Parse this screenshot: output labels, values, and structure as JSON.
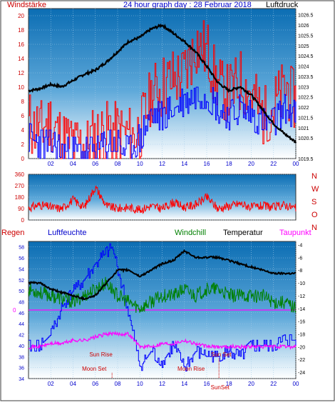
{
  "colors": {
    "frame": "#3b3b3b",
    "plot_top": "#0b73b8",
    "plot_bottom": "#ffffff",
    "grid": "#9fc9e6",
    "wind_gust": "#ff0000",
    "wind_avg": "#0000ff",
    "pressure": "#000000",
    "wind_dir": "#ff0000",
    "humidity": "#0000ff",
    "windchill": "#008000",
    "temperature": "#000000",
    "dewpoint": "#ff00ff",
    "zero_line": "#ff00ff",
    "sun_label": "#cc0000",
    "label_red": "#cc0000",
    "label_blue": "#0000cc",
    "label_green": "#008000",
    "label_magenta": "#ff00ff"
  },
  "header": {
    "title": "24 hour graph day : 28 Februar 2018",
    "left_label": "Windstärke",
    "right_label": "Luftdruck"
  },
  "chart_data": [
    {
      "type": "line",
      "id": "wind_pressure",
      "x_ticks": [
        "02",
        "04",
        "06",
        "08",
        "10",
        "12",
        "14",
        "16",
        "18",
        "20",
        "22",
        "00"
      ],
      "left_axis": {
        "name": "Windstärke",
        "ticks": [
          0,
          2,
          4,
          6,
          8,
          10,
          12,
          14,
          16,
          18,
          20
        ],
        "ylim": [
          0,
          21
        ]
      },
      "right_axis": {
        "name": "Luftdruck",
        "ticks": [
          "1019.5",
          "1020.5",
          "1021",
          "1021.5",
          "1022",
          "1022.5",
          "1023",
          "1023.5",
          "1024",
          "1024.5",
          "1025",
          "1025.5",
          "1026",
          "1026.5"
        ],
        "ylim": [
          1019.5,
          1026.8
        ]
      },
      "series": [
        {
          "name": "wind_gust",
          "hours": [
            0,
            1,
            2,
            3,
            4,
            5,
            6,
            7,
            8,
            9,
            10,
            11,
            12,
            13,
            14,
            15,
            16,
            17,
            18,
            19,
            20,
            21,
            22,
            23,
            24
          ],
          "values": [
            5,
            4,
            5,
            3,
            2,
            2,
            3,
            4,
            4,
            3,
            4,
            9,
            10,
            11,
            12,
            16,
            15,
            10,
            9,
            11,
            9,
            6,
            7,
            10,
            8
          ]
        },
        {
          "name": "wind_avg",
          "hours": [
            0,
            1,
            2,
            3,
            4,
            5,
            6,
            7,
            8,
            9,
            10,
            11,
            12,
            13,
            14,
            15,
            16,
            17,
            18,
            19,
            20,
            21,
            22,
            23,
            24
          ],
          "values": [
            3,
            2,
            2,
            1,
            1,
            1,
            1,
            2,
            2,
            1,
            3,
            6,
            6,
            7,
            8,
            9,
            9,
            7,
            6,
            7,
            6,
            5,
            5,
            7,
            6
          ]
        },
        {
          "name": "Luftdruck",
          "hours": [
            0,
            1,
            2,
            3,
            4,
            5,
            6,
            7,
            8,
            9,
            10,
            11,
            12,
            13,
            14,
            15,
            16,
            17,
            18,
            19,
            20,
            21,
            22,
            23,
            24
          ],
          "values": [
            1022.8,
            1022.9,
            1023.1,
            1023.0,
            1023.3,
            1023.6,
            1023.8,
            1024.2,
            1024.7,
            1025.2,
            1025.4,
            1025.8,
            1026.0,
            1025.6,
            1025.2,
            1024.7,
            1024.0,
            1023.2,
            1022.8,
            1023.0,
            1022.6,
            1021.9,
            1021.2,
            1020.7,
            1020.3
          ]
        }
      ]
    },
    {
      "type": "line",
      "id": "wind_direction",
      "left_axis": {
        "ticks": [
          0,
          90,
          180,
          270,
          360
        ],
        "ylim": [
          0,
          360
        ]
      },
      "right_labels": [
        "N",
        "W",
        "S",
        "O",
        "N"
      ],
      "series": [
        {
          "name": "wind_dir",
          "hours": [
            0,
            1,
            2,
            3,
            4,
            5,
            6,
            7,
            8,
            9,
            10,
            11,
            12,
            13,
            14,
            15,
            16,
            17,
            18,
            19,
            20,
            21,
            22,
            23,
            24
          ],
          "values": [
            95,
            120,
            100,
            90,
            160,
            100,
            260,
            110,
            90,
            100,
            80,
            110,
            90,
            140,
            100,
            120,
            180,
            90,
            110,
            130,
            100,
            110,
            100,
            120,
            90
          ]
        }
      ]
    },
    {
      "type": "line",
      "id": "temp_humidity",
      "labels": {
        "regen": "Regen",
        "humidity": "Luftfeuchte",
        "windchill": "Windchill",
        "temperature": "Temperatur",
        "dewpoint": "Taupunkt"
      },
      "zero_label": "0",
      "x_ticks": [
        "02",
        "04",
        "06",
        "08",
        "10",
        "12",
        "14",
        "16",
        "18",
        "20",
        "22",
        "00"
      ],
      "left_axis": {
        "name": "Luftfeuchte",
        "ticks": [
          34,
          36,
          38,
          40,
          42,
          44,
          46,
          48,
          50,
          52,
          54,
          56,
          58
        ],
        "ylim": [
          34,
          59
        ]
      },
      "right_axis": {
        "name": "Temperatur",
        "ticks": [
          -4,
          -6,
          -8,
          -10,
          -12,
          -14,
          -16,
          -18,
          -20,
          -22,
          -24
        ],
        "ylim": [
          -25,
          -3.5
        ]
      },
      "series": [
        {
          "name": "Luftfeuchte",
          "hours": [
            0,
            1,
            2,
            3,
            4,
            5,
            6,
            7,
            7.5,
            8,
            9,
            10,
            11,
            12,
            13,
            14,
            15,
            16,
            17,
            18,
            19,
            20,
            21,
            22,
            23,
            24
          ],
          "values": [
            40,
            40,
            42,
            47,
            50,
            52,
            55,
            57,
            58,
            54,
            46,
            36,
            39,
            37,
            40,
            36,
            39,
            38,
            38,
            39,
            38,
            40,
            40,
            40,
            41,
            41
          ]
        },
        {
          "name": "Windchill",
          "hours": [
            0,
            1,
            2,
            3,
            4,
            5,
            6,
            7,
            8,
            9,
            10,
            11,
            12,
            13,
            14,
            15,
            16,
            17,
            18,
            19,
            20,
            21,
            22,
            23,
            24
          ],
          "values": [
            -11,
            -11.5,
            -12,
            -12.5,
            -13,
            -12,
            -11,
            -10,
            -12,
            -13,
            -14,
            -13,
            -12,
            -12,
            -11,
            -12,
            -11,
            -11,
            -12,
            -12,
            -12,
            -12,
            -13,
            -13,
            -14
          ]
        },
        {
          "name": "Temperatur",
          "hours": [
            0,
            1,
            2,
            3,
            4,
            5,
            6,
            7,
            8,
            9,
            10,
            11,
            12,
            13,
            14,
            15,
            16,
            17,
            18,
            19,
            20,
            21,
            22,
            23,
            24
          ],
          "values": [
            -10,
            -10,
            -11,
            -11.5,
            -12,
            -12.5,
            -12,
            -10,
            -8,
            -8,
            -9,
            -8,
            -7,
            -6.5,
            -5,
            -6,
            -6,
            -6,
            -6.5,
            -7,
            -7.5,
            -8,
            -8.5,
            -8.5,
            -8.5
          ]
        },
        {
          "name": "Taupunkt",
          "hours": [
            0,
            1,
            2,
            3,
            4,
            5,
            6,
            7,
            8,
            9,
            10,
            11,
            12,
            13,
            14,
            15,
            16,
            17,
            18,
            19,
            20,
            21,
            22,
            23,
            24
          ],
          "values": [
            -20,
            -20,
            -19.5,
            -19.5,
            -19,
            -19,
            -18.5,
            -18,
            -18,
            -18,
            -20,
            -20,
            -19.5,
            -19.5,
            -19,
            -19.5,
            -20,
            -20,
            -20,
            -20,
            -20,
            -20,
            -20,
            -20,
            -20
          ]
        }
      ],
      "annotations": [
        {
          "text": "Sun Rise",
          "hour": 6.5,
          "row": "upper"
        },
        {
          "text": "Moon Set",
          "hour": 5.9,
          "row": "lower"
        },
        {
          "text": "Moon Rise",
          "hour": 14.6,
          "row": "lower"
        },
        {
          "text": "Sun Set",
          "hour": 17.3,
          "row": "upper"
        },
        {
          "text": "SunSet",
          "hour": 17.2,
          "row": "axis"
        }
      ]
    }
  ]
}
